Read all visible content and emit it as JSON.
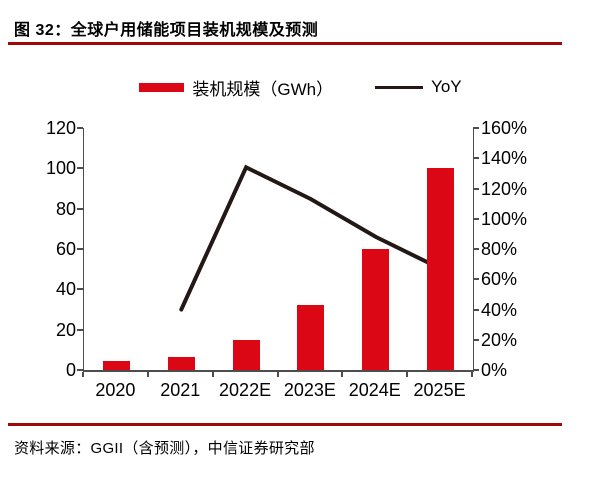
{
  "page": {
    "title": "图 32：全球户用储能项目装机规模及预测",
    "source": "资料来源：GGII（含预测），中信证券研究部"
  },
  "legend": {
    "bar_label": "装机规模（GWh）",
    "line_label": "YoY"
  },
  "colors": {
    "bar": "#DC0714",
    "line": "#231815",
    "rule": "#A00909",
    "axis": "#4D4D4D",
    "text": "#000000"
  },
  "chart_data": {
    "type": "bar",
    "combo": "bar on left axis + line on right axis",
    "title": "全球户用储能项目装机规模及预测",
    "categories": [
      "2020",
      "2021",
      "2022E",
      "2023E",
      "2024E",
      "2025E"
    ],
    "series": [
      {
        "name": "装机规模（GWh）",
        "type": "bar",
        "axis": "left",
        "values": [
          4.6,
          6.4,
          15,
          32,
          60,
          100
        ]
      },
      {
        "name": "YoY",
        "type": "line",
        "axis": "right",
        "unit": "%",
        "values": [
          null,
          40,
          134,
          113,
          88,
          67
        ]
      }
    ],
    "left_axis": {
      "lim": [
        0,
        120
      ],
      "tick_labels": [
        "0",
        "20",
        "40",
        "60",
        "80",
        "100",
        "120"
      ]
    },
    "right_axis": {
      "lim": [
        0,
        160
      ],
      "tick_labels": [
        "0%",
        "20%",
        "40%",
        "60%",
        "80%",
        "100%",
        "120%",
        "140%",
        "160%"
      ]
    },
    "grid": false,
    "legend_position": "top-center"
  }
}
